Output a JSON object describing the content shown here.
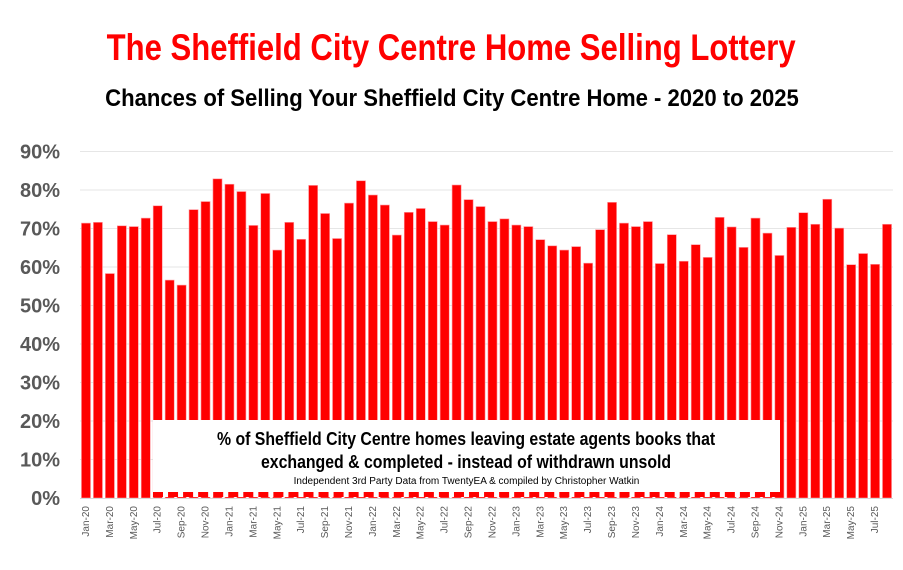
{
  "title": "The Sheffield City Centre Home Selling Lottery",
  "subtitle": "Chances of Selling Your Sheffield City Centre Home - 2020 to 2025",
  "note": {
    "line1": "% of Sheffield City Centre homes leaving estate agents books that",
    "line2": "exchanged & completed - instead of withdrawn unsold",
    "source": "Independent 3rd Party Data from TwentyEA & compiled by Christopher Watkin"
  },
  "colors": {
    "bar": "#ff0000",
    "title": "#ff0000"
  },
  "chart_data": {
    "type": "bar",
    "title": "Chances of Selling Your Sheffield City Centre Home - 2020 to 2025",
    "xlabel": "",
    "ylabel": "",
    "ylim": [
      0,
      90
    ],
    "yticks": [
      "0%",
      "10%",
      "20%",
      "30%",
      "40%",
      "50%",
      "60%",
      "70%",
      "80%",
      "90%"
    ],
    "grid": true,
    "categories": [
      "Jan-20",
      "Feb-20",
      "Mar-20",
      "Apr-20",
      "May-20",
      "Jun-20",
      "Jul-20",
      "Aug-20",
      "Sep-20",
      "Oct-20",
      "Nov-20",
      "Dec-20",
      "Jan-21",
      "Feb-21",
      "Mar-21",
      "Apr-21",
      "May-21",
      "Jun-21",
      "Jul-21",
      "Aug-21",
      "Sep-21",
      "Oct-21",
      "Nov-21",
      "Dec-21",
      "Jan-22",
      "Feb-22",
      "Mar-22",
      "Apr-22",
      "May-22",
      "Jun-22",
      "Jul-22",
      "Aug-22",
      "Sep-22",
      "Oct-22",
      "Nov-22",
      "Dec-22",
      "Jan-23",
      "Feb-23",
      "Mar-23",
      "Apr-23",
      "May-23",
      "Jun-23",
      "Jul-23",
      "Aug-23",
      "Sep-23",
      "Oct-23",
      "Nov-23",
      "Dec-23",
      "Jan-24",
      "Feb-24",
      "Mar-24",
      "Apr-24",
      "May-24",
      "Jun-24",
      "Jul-24",
      "Aug-24",
      "Sep-24",
      "Oct-24",
      "Nov-24",
      "Dec-24",
      "Jan-25",
      "Feb-25",
      "Mar-25",
      "Apr-25",
      "May-25",
      "Jun-25",
      "Jul-25",
      "Aug-25"
    ],
    "values": [
      71.4,
      71.6,
      58.3,
      70.7,
      70.5,
      72.7,
      75.9,
      56.6,
      55.3,
      74.9,
      77.0,
      82.9,
      81.5,
      79.6,
      70.8,
      79.1,
      64.4,
      71.6,
      67.2,
      81.2,
      73.9,
      67.4,
      76.6,
      82.4,
      78.7,
      76.1,
      68.3,
      74.2,
      75.2,
      71.8,
      70.9,
      81.3,
      77.5,
      75.7,
      71.8,
      72.5,
      70.9,
      70.5,
      67.1,
      65.5,
      64.4,
      65.3,
      61.0,
      69.7,
      76.8,
      71.4,
      70.5,
      71.8,
      60.9,
      68.4,
      61.5,
      65.8,
      62.5,
      72.9,
      70.4,
      65.1,
      72.7,
      68.8,
      63.0,
      70.3,
      74.1,
      71.1,
      77.6,
      70.1,
      60.6,
      63.5,
      60.7,
      71.1
    ]
  }
}
